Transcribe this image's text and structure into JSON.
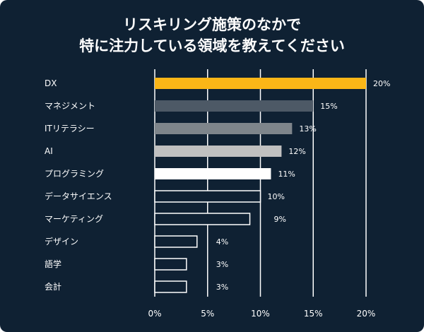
{
  "chart_data": {
    "type": "bar",
    "orientation": "horizontal",
    "title_lines": [
      "リスキリング施策のなかで",
      "特に注力している領域を教えてください"
    ],
    "categories": [
      "DX",
      "マネジメント",
      "ITリテラシー",
      "AI",
      "プログラミング",
      "データサイエンス",
      "マーケティング",
      "デザイン",
      "語学",
      "会計"
    ],
    "values": [
      20,
      15,
      13,
      12,
      11,
      10,
      9,
      4,
      3,
      3
    ],
    "value_labels": [
      "20%",
      "15%",
      "13%",
      "12%",
      "11%",
      "10%",
      "9%",
      "4%",
      "3%",
      "3%"
    ],
    "xlim": [
      0,
      20
    ],
    "xticks": [
      0,
      5,
      10,
      15,
      20
    ],
    "xtick_labels": [
      "0%",
      "5%",
      "10%",
      "15%",
      "20%"
    ],
    "grid": true,
    "bar_styles": [
      {
        "fill": "#fbb617",
        "stroke": "none"
      },
      {
        "fill": "#4d5966",
        "stroke": "none"
      },
      {
        "fill": "#7e858b",
        "stroke": "none"
      },
      {
        "fill": "#c0c0c0",
        "stroke": "none"
      },
      {
        "fill": "#ffffff",
        "stroke": "none"
      },
      {
        "fill": "#0f2133",
        "stroke": "#ffffff"
      },
      {
        "fill": "#0f2133",
        "stroke": "#ffffff"
      },
      {
        "fill": "#0f2133",
        "stroke": "#ffffff"
      },
      {
        "fill": "#0f2133",
        "stroke": "#ffffff"
      },
      {
        "fill": "#0f2133",
        "stroke": "#ffffff"
      }
    ],
    "background": "#0f2133",
    "text_color": "#ffffff",
    "grid_color": "#ffffff"
  }
}
